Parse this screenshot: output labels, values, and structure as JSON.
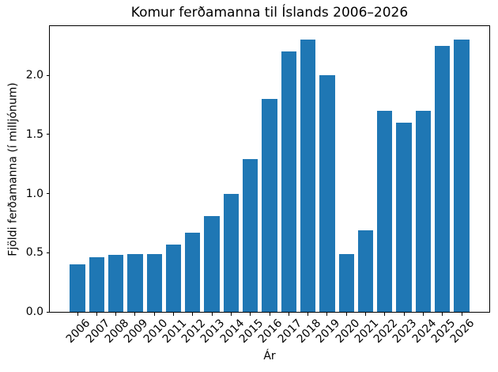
{
  "figure": {
    "background": "#ffffff",
    "text_color": "#000000",
    "spine_color": "#000000"
  },
  "chart_data": {
    "type": "bar",
    "title": "Komur ferðamanna til Íslands 2006–2026",
    "xlabel": "Ár",
    "ylabel": "Fjöldi ferðamanna (í milljónum)",
    "categories": [
      "2006",
      "2007",
      "2008",
      "2009",
      "2010",
      "2011",
      "2012",
      "2013",
      "2014",
      "2015",
      "2016",
      "2017",
      "2018",
      "2019",
      "2020",
      "2021",
      "2022",
      "2023",
      "2024",
      "2025",
      "2026"
    ],
    "values": [
      0.4,
      0.46,
      0.48,
      0.49,
      0.49,
      0.57,
      0.67,
      0.81,
      1.0,
      1.29,
      1.8,
      2.2,
      2.3,
      2.0,
      0.49,
      0.69,
      1.7,
      1.6,
      1.7,
      2.25,
      2.3
    ],
    "bar_color": "#1f77b4",
    "bar_width_fraction": 0.8,
    "ylim": [
      0,
      2.415
    ],
    "yticks": [
      0.0,
      0.5,
      1.0,
      1.5,
      2.0
    ],
    "ytick_labels": [
      "0.0",
      "0.5",
      "1.0",
      "1.5",
      "2.0"
    ],
    "xtick_rotation": 45,
    "grid": false,
    "legend": "none"
  }
}
